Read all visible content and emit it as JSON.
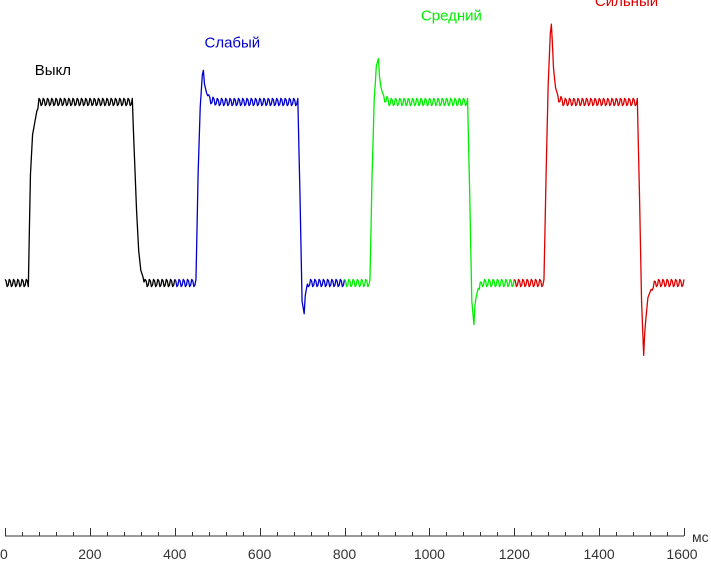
{
  "chart_data": {
    "type": "line",
    "title": "",
    "xlabel": "",
    "ylabel": "",
    "x_unit": "мс",
    "xlim": [
      0,
      1600
    ],
    "x_ticks": [
      0,
      200,
      400,
      600,
      800,
      1000,
      1200,
      1400,
      1600
    ],
    "x_tick_labels": [
      "0",
      "200",
      "400",
      "600",
      "800",
      "1000",
      "1200",
      "1400",
      "1600"
    ],
    "x_minor_step": 40,
    "ylim": [
      -2.2,
      1.35
    ],
    "y_axis_shown": false,
    "grid": false,
    "legend": "inline labels above each segment",
    "baseline_ripple": 0.02,
    "series": [
      {
        "name": "Выкл",
        "color": "#000000",
        "points": [
          [
            0,
            0
          ],
          [
            10,
            0
          ],
          [
            45,
            0
          ],
          [
            55,
            0
          ],
          [
            60,
            0.6
          ],
          [
            65,
            0.82
          ],
          [
            75,
            0.95
          ],
          [
            80,
            1.0
          ],
          [
            200,
            1.0
          ],
          [
            300,
            1.0
          ],
          [
            305,
            0.7
          ],
          [
            310,
            0.4
          ],
          [
            315,
            0.18
          ],
          [
            320,
            0.07
          ],
          [
            330,
            0
          ],
          [
            400,
            0
          ]
        ],
        "label_x": 70,
        "label_y": 1.15
      },
      {
        "name": "Слабый",
        "color": "#0000cc",
        "points": [
          [
            400,
            0
          ],
          [
            450,
            0
          ],
          [
            455,
            0.6
          ],
          [
            460,
            0.97
          ],
          [
            465,
            1.15
          ],
          [
            468,
            1.18
          ],
          [
            470,
            1.1
          ],
          [
            475,
            1.05
          ],
          [
            480,
            1.02
          ],
          [
            485,
            1.01
          ],
          [
            500,
            1.0
          ],
          [
            600,
            1.0
          ],
          [
            690,
            1.0
          ],
          [
            695,
            0.5
          ],
          [
            700,
            -0.1
          ],
          [
            705,
            -0.17
          ],
          [
            708,
            -0.05
          ],
          [
            715,
            0
          ],
          [
            800,
            0
          ]
        ],
        "label_x": 470,
        "label_y": 1.3
      },
      {
        "name": "Средний",
        "color": "#00ee00",
        "points": [
          [
            800,
            0
          ],
          [
            860,
            0
          ],
          [
            865,
            0.6
          ],
          [
            870,
            1.0
          ],
          [
            875,
            1.2
          ],
          [
            880,
            1.24
          ],
          [
            883,
            1.12
          ],
          [
            888,
            1.06
          ],
          [
            895,
            1.02
          ],
          [
            905,
            1.0
          ],
          [
            1000,
            1.0
          ],
          [
            1090,
            1.0
          ],
          [
            1095,
            0.5
          ],
          [
            1100,
            -0.1
          ],
          [
            1105,
            -0.23
          ],
          [
            1108,
            -0.1
          ],
          [
            1115,
            -0.03
          ],
          [
            1125,
            0
          ],
          [
            1200,
            0
          ]
        ],
        "label_x": 980,
        "label_y": 1.45
      },
      {
        "name": "Сильный",
        "color": "#dd0000",
        "points": [
          [
            1200,
            0
          ],
          [
            1270,
            0
          ],
          [
            1275,
            0.6
          ],
          [
            1280,
            1.1
          ],
          [
            1285,
            1.38
          ],
          [
            1288,
            1.44
          ],
          [
            1292,
            1.2
          ],
          [
            1297,
            1.08
          ],
          [
            1305,
            1.02
          ],
          [
            1315,
            1.0
          ],
          [
            1400,
            1.0
          ],
          [
            1490,
            1.0
          ],
          [
            1495,
            0.5
          ],
          [
            1500,
            -0.1
          ],
          [
            1505,
            -0.4
          ],
          [
            1508,
            -0.25
          ],
          [
            1515,
            -0.08
          ],
          [
            1525,
            -0.02
          ],
          [
            1535,
            0
          ],
          [
            1600,
            0
          ]
        ],
        "label_x": 1390,
        "label_y": 1.53
      }
    ]
  }
}
